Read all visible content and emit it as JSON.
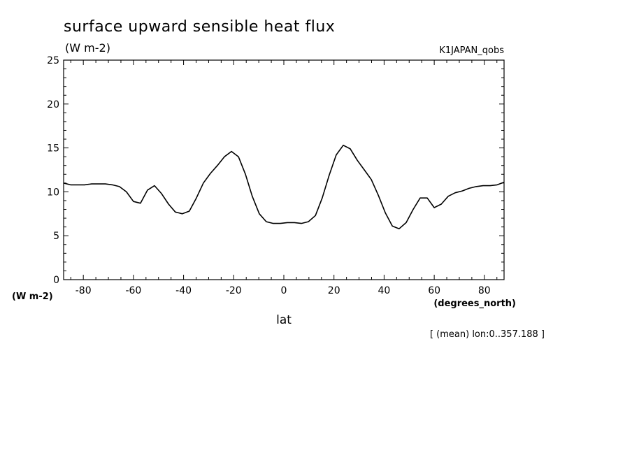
{
  "chart_data": {
    "type": "line",
    "title": "surface upward sensible heat flux",
    "units": "(W m-2)",
    "dataset": "K1JAPAN_qobs",
    "ylabel": "(W m-2)",
    "xlabel": "lat",
    "xunits": "(degrees_north)",
    "note": "[ (mean) lon:0..357.188 ]",
    "xlim": [
      -87.86,
      87.86
    ],
    "ylim": [
      0,
      25
    ],
    "xticks": [
      -80,
      -60,
      -40,
      -20,
      0,
      20,
      40,
      60,
      80
    ],
    "xtick_labels": [
      "-80",
      "-60",
      "-40",
      "-20",
      "0",
      "20",
      "40",
      "60",
      "80"
    ],
    "yticks": [
      0,
      5,
      10,
      15,
      20,
      25
    ],
    "ytick_labels": [
      "0",
      "5",
      "10",
      "15",
      "20",
      "25"
    ],
    "grid": false,
    "series": [
      {
        "color": "#000000",
        "x": [
          -87.9,
          -85.1,
          -82.3,
          -79.5,
          -76.7,
          -73.9,
          -71.2,
          -68.4,
          -65.6,
          -62.8,
          -60.0,
          -57.2,
          -54.4,
          -51.6,
          -48.8,
          -46.0,
          -43.3,
          -40.5,
          -37.7,
          -34.9,
          -32.1,
          -29.3,
          -26.5,
          -23.7,
          -20.9,
          -18.1,
          -15.3,
          -12.6,
          -9.8,
          -7.0,
          -4.2,
          -1.4,
          1.4,
          4.2,
          7.0,
          9.8,
          12.6,
          15.3,
          18.1,
          20.9,
          23.7,
          26.5,
          29.3,
          32.1,
          34.9,
          37.7,
          40.5,
          43.3,
          46.0,
          48.8,
          51.6,
          54.4,
          57.2,
          60.0,
          62.8,
          65.6,
          68.4,
          71.2,
          73.9,
          76.7,
          79.5,
          82.3,
          85.1,
          87.9
        ],
        "values": [
          11.0,
          10.8,
          10.8,
          10.8,
          10.9,
          10.9,
          10.9,
          10.8,
          10.6,
          10.0,
          8.9,
          8.7,
          10.2,
          10.7,
          9.8,
          8.6,
          7.7,
          7.5,
          7.8,
          9.3,
          11.0,
          12.1,
          13.0,
          14.0,
          14.6,
          14.0,
          12.0,
          9.5,
          7.5,
          6.6,
          6.4,
          6.4,
          6.5,
          6.5,
          6.4,
          6.6,
          7.3,
          9.3,
          11.9,
          14.2,
          15.3,
          14.9,
          13.6,
          12.5,
          11.4,
          9.6,
          7.6,
          6.1,
          5.8,
          6.5,
          8.0,
          9.3,
          9.3,
          8.2,
          8.6,
          9.5,
          9.9,
          10.1,
          10.4,
          10.6,
          10.7,
          10.7,
          10.8,
          11.1
        ]
      }
    ]
  }
}
